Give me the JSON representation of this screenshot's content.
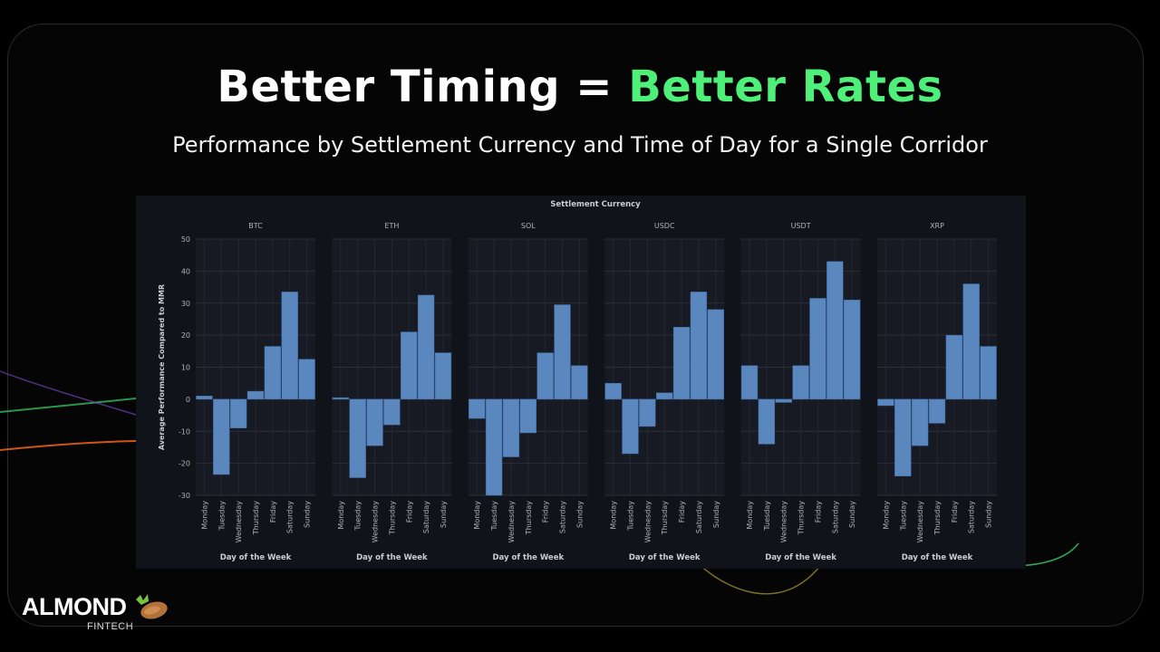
{
  "slide": {
    "title_part1": "Better Timing = ",
    "title_part2": "Better Rates",
    "subtitle": "Performance by Settlement Currency and Time of Day for a Single Corridor"
  },
  "logo": {
    "name": "ALMOND",
    "tagline": "FINTECH",
    "icon": "almond-leaf-icon"
  },
  "colors": {
    "accent": "#4ef07a",
    "bar": "#5b87bf",
    "background": "#000000",
    "plot_bg": "#11131a"
  },
  "chart_data": {
    "type": "bar",
    "title": "Settlement Currency",
    "xlabel": "Day of the Week",
    "ylabel": "Average Performance Compared to MMR",
    "ylim": [
      -30,
      50
    ],
    "yticks": [
      50,
      40,
      30,
      20,
      10,
      0,
      -10,
      -20,
      -30
    ],
    "categories": [
      "Monday",
      "Tuesday",
      "Wednesday",
      "Thursday",
      "Friday",
      "Saturday",
      "Sunday"
    ],
    "series": [
      {
        "name": "BTC",
        "values": [
          1,
          -23.5,
          -9,
          2.5,
          16.5,
          33.5,
          12.5
        ]
      },
      {
        "name": "ETH",
        "values": [
          0.5,
          -24.5,
          -14.5,
          -8,
          21,
          32.5,
          14.5
        ]
      },
      {
        "name": "SOL",
        "values": [
          -6,
          -30,
          -18,
          -10.5,
          14.5,
          29.5,
          10.5
        ]
      },
      {
        "name": "USDC",
        "values": [
          5,
          -17,
          -8.5,
          2,
          22.5,
          33.5,
          28
        ]
      },
      {
        "name": "USDT",
        "values": [
          10.5,
          -14,
          -1,
          10.5,
          31.5,
          43,
          31
        ]
      },
      {
        "name": "XRP",
        "values": [
          -2,
          -24,
          -14.5,
          -7.5,
          20,
          36,
          16.5
        ]
      }
    ],
    "grid": true,
    "legend": "none"
  }
}
